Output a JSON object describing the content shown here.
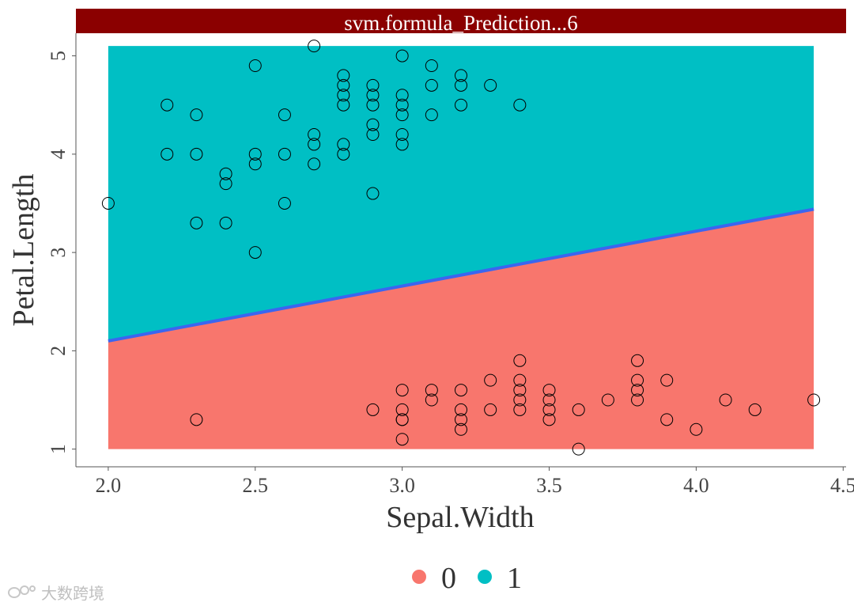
{
  "colors": {
    "class_0": "#F8766D",
    "class_1": "#00BFC4",
    "boundary": "#3A66F0",
    "strip": "#8B0000",
    "strip_text": "#FFFFFF",
    "point_stroke": "#000000",
    "axis": "#555555"
  },
  "chart_data": {
    "type": "scatter",
    "title": "svm.formula_Prediction...6",
    "xlabel": "Sepal.Width",
    "ylabel": "Petal.Length",
    "xlim": [
      1.89,
      4.51
    ],
    "ylim": [
      0.82,
      5.23
    ],
    "x_ticks": [
      2.0,
      2.5,
      3.0,
      3.5,
      4.0,
      4.5
    ],
    "x_tick_labels": [
      "2.0",
      "2.5",
      "3.0",
      "3.5",
      "4.0",
      "4.5"
    ],
    "y_ticks": [
      1,
      2,
      3,
      4,
      5
    ],
    "y_tick_labels": [
      "1",
      "2",
      "3",
      "4",
      "5"
    ],
    "grid": false,
    "legend": {
      "position": "bottom",
      "entries": [
        {
          "label": "0",
          "color": "#F8766D"
        },
        {
          "label": "1",
          "color": "#00BFC4"
        }
      ]
    },
    "decision_region": {
      "x_range": [
        2.0,
        4.4
      ],
      "y_range": [
        1.0,
        5.1
      ],
      "boundary": {
        "x": [
          2.0,
          4.4
        ],
        "y": [
          2.1,
          3.44
        ]
      },
      "above_class": "1",
      "below_class": "0"
    },
    "points": {
      "x": [
        2.0,
        2.2,
        2.2,
        2.3,
        2.3,
        2.3,
        2.4,
        2.4,
        2.4,
        2.5,
        2.5,
        2.5,
        2.5,
        2.6,
        2.6,
        2.6,
        2.7,
        2.7,
        2.7,
        2.7,
        2.8,
        2.8,
        2.8,
        2.8,
        2.8,
        2.8,
        2.9,
        2.9,
        2.9,
        2.9,
        2.9,
        2.9,
        3.0,
        3.0,
        3.0,
        3.0,
        3.0,
        3.0,
        3.1,
        3.1,
        3.1,
        3.2,
        3.2,
        3.2,
        3.3,
        3.4,
        2.3,
        2.9,
        3.0,
        3.0,
        3.0,
        3.0,
        3.0,
        3.1,
        3.1,
        3.2,
        3.2,
        3.2,
        3.2,
        3.3,
        3.3,
        3.4,
        3.4,
        3.4,
        3.4,
        3.4,
        3.5,
        3.5,
        3.5,
        3.5,
        3.6,
        3.6,
        3.7,
        3.8,
        3.8,
        3.8,
        3.8,
        3.9,
        3.9,
        4.0,
        4.1,
        4.2,
        4.4
      ],
      "y": [
        3.5,
        4.5,
        4.0,
        4.4,
        4.0,
        3.3,
        3.8,
        3.7,
        3.3,
        4.9,
        4.0,
        3.9,
        3.0,
        4.4,
        4.0,
        3.5,
        5.1,
        4.2,
        4.1,
        3.9,
        4.8,
        4.7,
        4.6,
        4.5,
        4.1,
        4.0,
        4.7,
        4.6,
        4.5,
        4.3,
        4.2,
        3.6,
        5.0,
        4.6,
        4.5,
        4.4,
        4.2,
        4.1,
        4.9,
        4.7,
        4.4,
        4.8,
        4.7,
        4.5,
        4.7,
        4.5,
        1.3,
        1.4,
        1.6,
        1.4,
        1.3,
        1.3,
        1.1,
        1.6,
        1.5,
        1.6,
        1.4,
        1.3,
        1.2,
        1.7,
        1.4,
        1.9,
        1.7,
        1.6,
        1.5,
        1.4,
        1.6,
        1.5,
        1.4,
        1.3,
        1.4,
        1.0,
        1.5,
        1.9,
        1.7,
        1.6,
        1.5,
        1.7,
        1.3,
        1.2,
        1.5,
        1.4,
        1.5
      ]
    }
  },
  "watermark": {
    "text": "大数跨境",
    "logo_icon": "infinity-logo-icon"
  }
}
